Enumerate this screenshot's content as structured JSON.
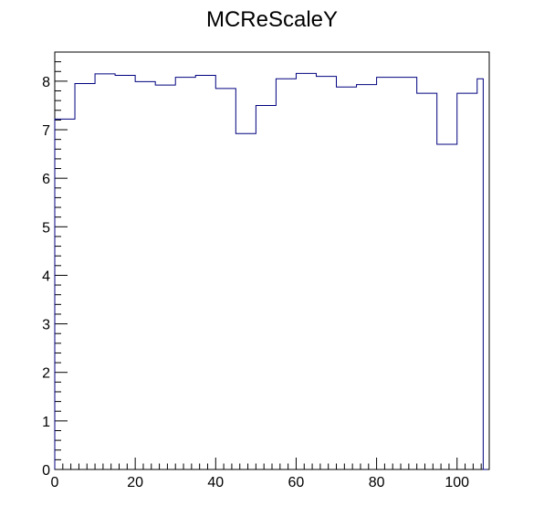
{
  "chart_data": {
    "type": "bar",
    "style": "step-histogram",
    "title": "MCReScaleY",
    "xlabel": "",
    "ylabel": "",
    "xlim": [
      0,
      108
    ],
    "ylim": [
      0,
      8.6
    ],
    "bin_edges": [
      0,
      5,
      10,
      15,
      20,
      25,
      30,
      35,
      40,
      45,
      50,
      55,
      60,
      65,
      70,
      75,
      80,
      85,
      90,
      95,
      100,
      105,
      106.5,
      107.5
    ],
    "values": [
      7.22,
      7.95,
      8.15,
      8.12,
      7.99,
      7.92,
      8.08,
      8.12,
      7.85,
      6.92,
      7.5,
      8.05,
      8.16,
      8.1,
      7.88,
      7.93,
      8.08,
      8.08,
      7.75,
      6.7,
      7.75,
      8.05,
      0
    ],
    "x_ticks": [
      "0",
      "20",
      "40",
      "60",
      "80",
      "100"
    ],
    "x_tick_values": [
      0,
      20,
      40,
      60,
      80,
      100
    ],
    "y_ticks": [
      "0",
      "1",
      "2",
      "3",
      "4",
      "5",
      "6",
      "7",
      "8"
    ],
    "y_tick_values": [
      0,
      1,
      2,
      3,
      4,
      5,
      6,
      7,
      8
    ],
    "grid": false,
    "legend": "none",
    "line_color": "#00007f",
    "axis_color": "#000000"
  }
}
